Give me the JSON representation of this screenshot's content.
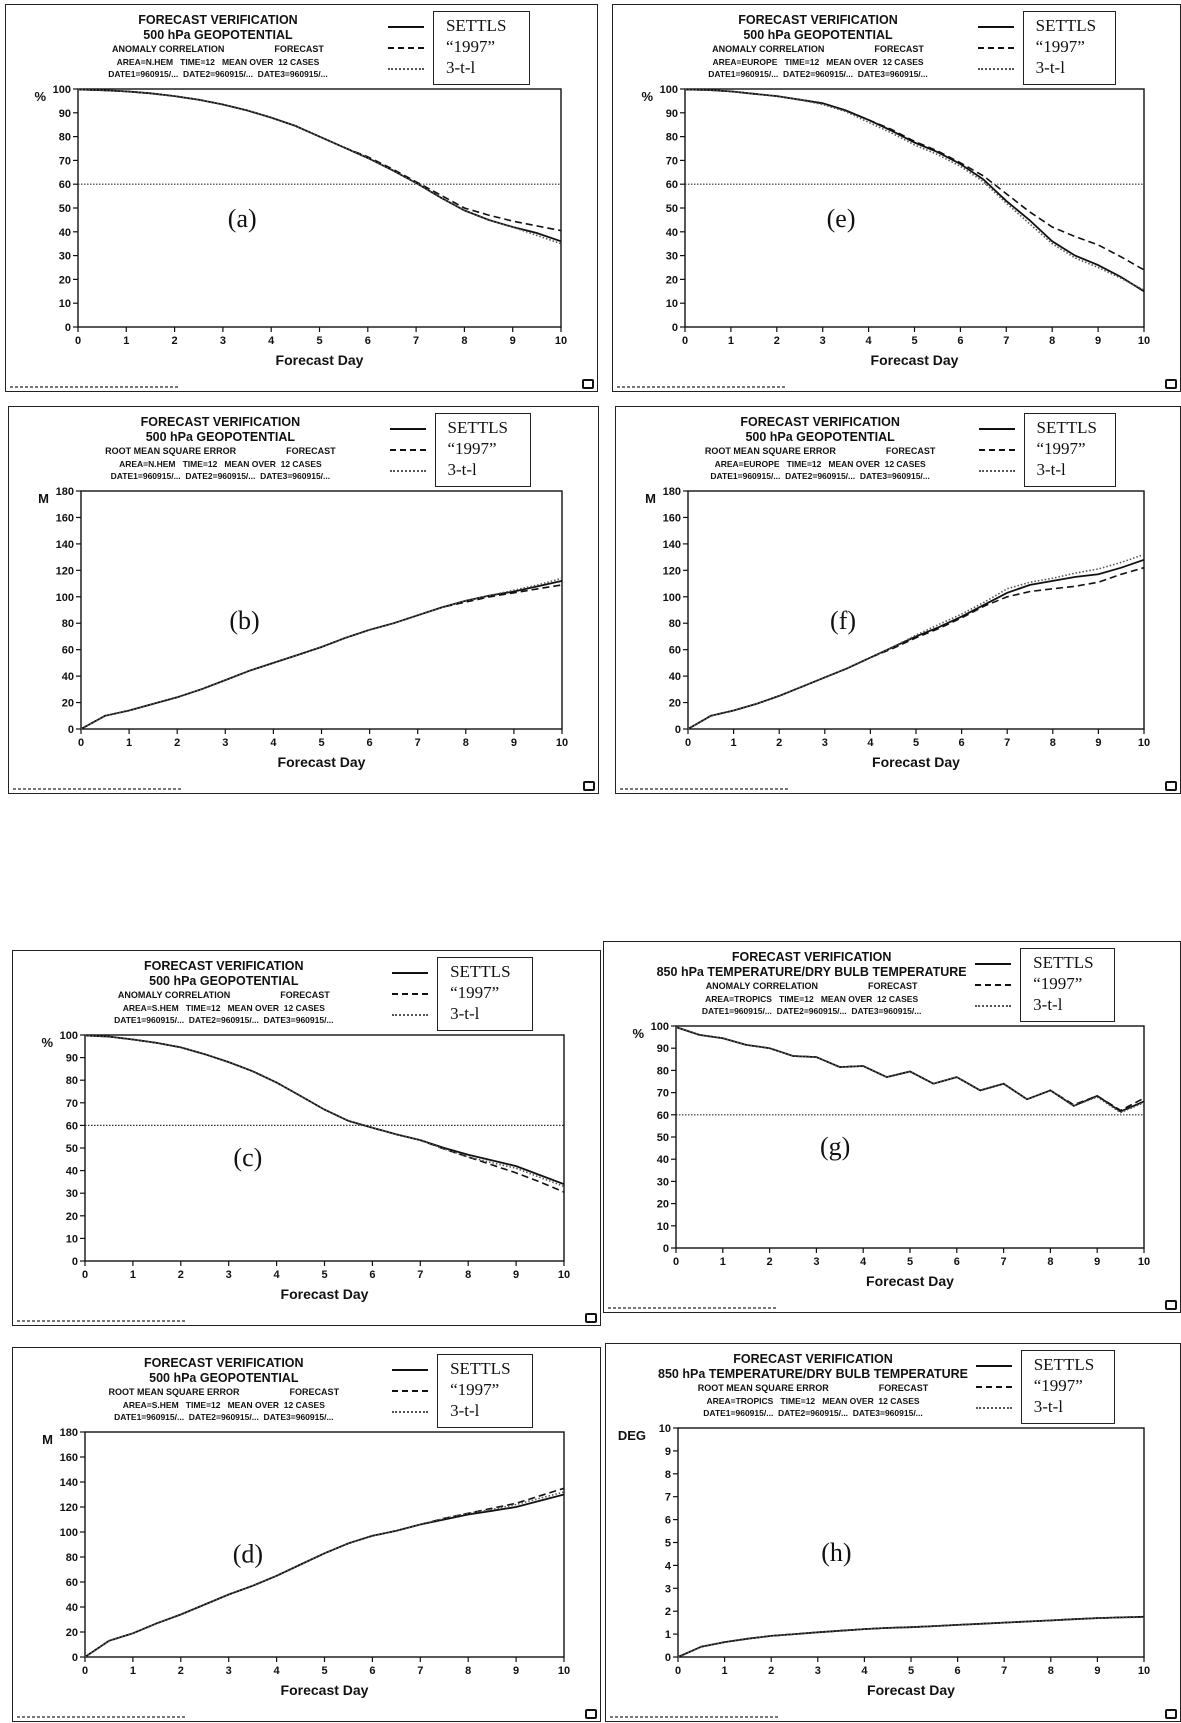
{
  "legend_labels": [
    "SETTLS",
    "“1997”",
    "3-t-l"
  ],
  "chart_data": [
    {
      "id": "a",
      "type": "line",
      "letter": "(a)",
      "title": "FORECAST VERIFICATION",
      "subtitle": "500 hPa GEOPOTENTIAL",
      "info": [
        "ANOMALY CORRELATION                    FORECAST",
        "AREA=N.HEM   TIME=12   MEAN OVER  12 CASES",
        "DATE1=960915/...  DATE2=960915/...  DATE3=960915/..."
      ],
      "ylabel": "%",
      "xlabel": "Forecast Day",
      "xlim": [
        0,
        10
      ],
      "ylim": [
        0,
        100
      ],
      "yticks": [
        0,
        10,
        20,
        30,
        40,
        50,
        60,
        70,
        80,
        90,
        100
      ],
      "xticks": [
        0,
        1,
        2,
        3,
        4,
        5,
        6,
        7,
        8,
        9,
        10
      ],
      "ref_line": 60,
      "x": [
        0,
        0.5,
        1,
        1.5,
        2,
        2.5,
        3,
        3.5,
        4,
        4.5,
        5,
        5.5,
        6,
        6.5,
        7,
        7.5,
        8,
        8.5,
        9,
        9.5,
        10
      ],
      "series": [
        {
          "name": "SETTLS",
          "values": [
            99.8,
            99.5,
            99,
            98.2,
            97,
            95.5,
            93.5,
            91,
            88,
            84.5,
            80,
            75.5,
            71,
            66,
            60.5,
            54.5,
            49,
            45,
            42,
            39.5,
            36
          ]
        },
        {
          "name": "“1997”",
          "values": [
            99.8,
            99.5,
            99,
            98.2,
            97,
            95.5,
            93.5,
            91,
            88,
            84.5,
            80,
            75.5,
            71.5,
            66.5,
            61,
            55.5,
            50,
            47,
            44.5,
            42.5,
            40.5
          ]
        },
        {
          "name": "3-t-l",
          "values": [
            99.8,
            99.5,
            99,
            98.2,
            97,
            95.5,
            93.5,
            91,
            88,
            84.5,
            80,
            75.5,
            71,
            66,
            60.5,
            54.5,
            49,
            45,
            42,
            38.5,
            35
          ]
        }
      ]
    },
    {
      "id": "b",
      "type": "line",
      "letter": "(b)",
      "title": "FORECAST VERIFICATION",
      "subtitle": "500 hPa GEOPOTENTIAL",
      "info": [
        "ROOT MEAN SQUARE ERROR                    FORECAST",
        "AREA=N.HEM   TIME=12   MEAN OVER  12 CASES",
        "DATE1=960915/...  DATE2=960915/...  DATE3=960915/..."
      ],
      "ylabel": "M",
      "xlabel": "Forecast Day",
      "xlim": [
        0,
        10
      ],
      "ylim": [
        0,
        180
      ],
      "yticks": [
        0,
        20,
        40,
        60,
        80,
        100,
        120,
        140,
        160,
        180
      ],
      "xticks": [
        0,
        1,
        2,
        3,
        4,
        5,
        6,
        7,
        8,
        9,
        10
      ],
      "ref_line": null,
      "x": [
        0,
        0.5,
        1,
        1.5,
        2,
        2.5,
        3,
        3.5,
        4,
        4.5,
        5,
        5.5,
        6,
        6.5,
        7,
        7.5,
        8,
        8.5,
        9,
        9.5,
        10
      ],
      "series": [
        {
          "name": "SETTLS",
          "values": [
            0,
            10,
            14,
            19,
            24,
            30,
            37,
            44,
            50,
            56,
            62,
            69,
            75,
            80,
            86,
            92,
            97,
            101,
            104,
            108,
            112
          ]
        },
        {
          "name": "“1997”",
          "values": [
            0,
            10,
            14,
            19,
            24,
            30,
            37,
            44,
            50,
            56,
            62,
            69,
            75,
            80,
            86,
            92,
            96,
            100,
            103,
            106,
            109
          ]
        },
        {
          "name": "3-t-l",
          "values": [
            0,
            10,
            14,
            19,
            24,
            30,
            37,
            44,
            50,
            56,
            62,
            69,
            75,
            80,
            86,
            92,
            97,
            101,
            105,
            109,
            114
          ]
        }
      ]
    },
    {
      "id": "c",
      "type": "line",
      "letter": "(c)",
      "title": "FORECAST VERIFICATION",
      "subtitle": "500 hPa GEOPOTENTIAL",
      "info": [
        "ANOMALY CORRELATION                    FORECAST",
        "AREA=S.HEM   TIME=12   MEAN OVER  12 CASES",
        "DATE1=960915/...  DATE2=960915/...  DATE3=960915/..."
      ],
      "ylabel": "%",
      "xlabel": "Forecast Day",
      "xlim": [
        0,
        10
      ],
      "ylim": [
        0,
        100
      ],
      "yticks": [
        0,
        10,
        20,
        30,
        40,
        50,
        60,
        70,
        80,
        90,
        100
      ],
      "xticks": [
        0,
        1,
        2,
        3,
        4,
        5,
        6,
        7,
        8,
        9,
        10
      ],
      "ref_line": 60,
      "x": [
        0,
        0.5,
        1,
        1.5,
        2,
        2.5,
        3,
        3.5,
        4,
        4.5,
        5,
        5.5,
        6,
        6.5,
        7,
        7.5,
        8,
        8.5,
        9,
        9.5,
        10
      ],
      "series": [
        {
          "name": "SETTLS",
          "values": [
            99.8,
            99.3,
            98,
            96.5,
            94.5,
            91.5,
            88,
            84,
            79,
            73,
            67,
            62,
            59,
            56,
            53.5,
            50,
            47,
            44.5,
            42,
            38,
            34
          ]
        },
        {
          "name": "“1997”",
          "values": [
            99.8,
            99.3,
            98,
            96.5,
            94.5,
            91.5,
            88,
            84,
            79,
            73,
            67,
            62,
            59,
            56,
            53.5,
            49.5,
            46,
            42.5,
            39,
            35,
            30.5
          ]
        },
        {
          "name": "3-t-l",
          "values": [
            99.8,
            99.3,
            98,
            96.5,
            94.5,
            91.5,
            88,
            84,
            79,
            73,
            67,
            62,
            59,
            56,
            53.5,
            49.5,
            46,
            43.5,
            41,
            37,
            33
          ]
        }
      ]
    },
    {
      "id": "d",
      "type": "line",
      "letter": "(d)",
      "title": "FORECAST VERIFICATION",
      "subtitle": "500 hPa GEOPOTENTIAL",
      "info": [
        "ROOT MEAN SQUARE ERROR                    FORECAST",
        "AREA=S.HEM   TIME=12   MEAN OVER  12 CASES",
        "DATE1=960915/...  DATE2=960915/...  DATE3=960915/..."
      ],
      "ylabel": "M",
      "xlabel": "Forecast Day",
      "xlim": [
        0,
        10
      ],
      "ylim": [
        0,
        180
      ],
      "yticks": [
        0,
        20,
        40,
        60,
        80,
        100,
        120,
        140,
        160,
        180
      ],
      "xticks": [
        0,
        1,
        2,
        3,
        4,
        5,
        6,
        7,
        8,
        9,
        10
      ],
      "ref_line": null,
      "x": [
        0,
        0.5,
        1,
        1.5,
        2,
        2.5,
        3,
        3.5,
        4,
        4.5,
        5,
        5.5,
        6,
        6.5,
        7,
        7.5,
        8,
        8.5,
        9,
        9.5,
        10
      ],
      "series": [
        {
          "name": "SETTLS",
          "values": [
            0,
            13,
            19,
            27,
            34,
            42,
            50,
            57,
            65,
            74,
            83,
            91,
            97,
            101,
            106,
            110,
            114,
            117,
            120,
            125,
            130
          ]
        },
        {
          "name": "“1997”",
          "values": [
            0,
            13,
            19,
            27,
            34,
            42,
            50,
            57,
            65,
            74,
            83,
            91,
            97,
            101,
            106,
            111,
            115,
            119,
            123,
            129,
            135
          ]
        },
        {
          "name": "3-t-l",
          "values": [
            0,
            13,
            19,
            27,
            34,
            42,
            50,
            57,
            65,
            74,
            83,
            91,
            97,
            101,
            106,
            111,
            115,
            118,
            122,
            127,
            132
          ]
        }
      ]
    },
    {
      "id": "e",
      "type": "line",
      "letter": "(e)",
      "title": "FORECAST VERIFICATION",
      "subtitle": "500 hPa GEOPOTENTIAL",
      "info": [
        "ANOMALY CORRELATION                    FORECAST",
        "AREA=EUROPE   TIME=12   MEAN OVER  12 CASES",
        "DATE1=960915/...  DATE2=960915/...  DATE3=960915/..."
      ],
      "ylabel": "%",
      "xlabel": "Forecast Day",
      "xlim": [
        0,
        10
      ],
      "ylim": [
        0,
        100
      ],
      "yticks": [
        0,
        10,
        20,
        30,
        40,
        50,
        60,
        70,
        80,
        90,
        100
      ],
      "xticks": [
        0,
        1,
        2,
        3,
        4,
        5,
        6,
        7,
        8,
        9,
        10
      ],
      "ref_line": 60,
      "x": [
        0,
        0.5,
        1,
        1.5,
        2,
        2.5,
        3,
        3.5,
        4,
        4.5,
        5,
        5.5,
        6,
        6.5,
        7,
        7.5,
        8,
        8.5,
        9,
        9.5,
        10
      ],
      "series": [
        {
          "name": "SETTLS",
          "values": [
            99.8,
            99.6,
            99,
            98,
            97,
            95.5,
            94,
            91,
            87,
            82.5,
            77.5,
            73.5,
            68.5,
            62,
            53,
            45,
            36,
            30,
            26,
            21,
            15
          ]
        },
        {
          "name": "“1997”",
          "values": [
            99.8,
            99.6,
            99,
            98,
            97,
            95.5,
            94,
            91,
            87,
            83,
            78,
            74,
            69,
            63.5,
            56,
            48.5,
            42,
            38,
            34.5,
            29.5,
            24
          ]
        },
        {
          "name": "3-t-l",
          "values": [
            99.8,
            99.6,
            99,
            98,
            97,
            95.5,
            93.5,
            90.5,
            86,
            81.5,
            76.5,
            72.5,
            67.5,
            61,
            52,
            43.5,
            35,
            29,
            25,
            20.5,
            15.5
          ]
        }
      ]
    },
    {
      "id": "f",
      "type": "line",
      "letter": "(f)",
      "title": "FORECAST VERIFICATION",
      "subtitle": "500 hPa GEOPOTENTIAL",
      "info": [
        "ROOT MEAN SQUARE ERROR                    FORECAST",
        "AREA=EUROPE   TIME=12   MEAN OVER  12 CASES",
        "DATE1=960915/...  DATE2=960915/...  DATE3=960915/..."
      ],
      "ylabel": "M",
      "xlabel": "Forecast Day",
      "xlim": [
        0,
        10
      ],
      "ylim": [
        0,
        180
      ],
      "yticks": [
        0,
        20,
        40,
        60,
        80,
        100,
        120,
        140,
        160,
        180
      ],
      "xticks": [
        0,
        1,
        2,
        3,
        4,
        5,
        6,
        7,
        8,
        9,
        10
      ],
      "ref_line": null,
      "x": [
        0,
        0.5,
        1,
        1.5,
        2,
        2.5,
        3,
        3.5,
        4,
        4.5,
        5,
        5.5,
        6,
        6.5,
        7,
        7.5,
        8,
        8.5,
        9,
        9.5,
        10
      ],
      "series": [
        {
          "name": "SETTLS",
          "values": [
            0,
            10,
            14,
            19,
            25,
            32,
            39,
            46,
            54,
            62,
            70,
            77,
            85,
            94,
            103,
            109,
            112,
            115,
            117,
            122,
            128
          ]
        },
        {
          "name": "“1997”",
          "values": [
            0,
            10,
            14,
            19,
            25,
            32,
            39,
            46,
            54,
            61,
            69,
            76,
            84,
            93,
            100,
            104,
            106,
            108,
            111,
            117,
            122
          ]
        },
        {
          "name": "3-t-l",
          "values": [
            0,
            10,
            14,
            19,
            25,
            32,
            39,
            46,
            54,
            62,
            71,
            79,
            87,
            96,
            106,
            111,
            114,
            118,
            121,
            126,
            132
          ]
        }
      ]
    },
    {
      "id": "g",
      "type": "line",
      "letter": "(g)",
      "title": "FORECAST VERIFICATION",
      "subtitle": "850 hPa TEMPERATURE/DRY BULB TEMPERATURE",
      "info": [
        "ANOMALY CORRELATION                    FORECAST",
        "AREA=TROPICS   TIME=12   MEAN OVER  12 CASES",
        "DATE1=960915/...  DATE2=960915/...  DATE3=960915/..."
      ],
      "ylabel": "%",
      "xlabel": "Forecast Day",
      "xlim": [
        0,
        10
      ],
      "ylim": [
        0,
        100
      ],
      "yticks": [
        0,
        10,
        20,
        30,
        40,
        50,
        60,
        70,
        80,
        90,
        100
      ],
      "xticks": [
        0,
        1,
        2,
        3,
        4,
        5,
        6,
        7,
        8,
        9,
        10
      ],
      "ref_line": 60,
      "x": [
        0,
        0.5,
        1,
        1.5,
        2,
        2.5,
        3,
        3.5,
        4,
        4.5,
        5,
        5.5,
        6,
        6.5,
        7,
        7.5,
        8,
        8.5,
        9,
        9.5,
        10
      ],
      "series": [
        {
          "name": "SETTLS",
          "values": [
            99.5,
            96,
            94.5,
            91.5,
            90,
            86.5,
            86,
            81.5,
            82,
            77,
            79.5,
            74,
            77,
            71,
            74,
            67,
            71,
            64,
            68.5,
            61.5,
            66
          ]
        },
        {
          "name": "“1997”",
          "values": [
            99.5,
            96,
            94.5,
            91.5,
            90,
            86.5,
            86,
            81.5,
            82,
            77,
            79.5,
            74,
            77,
            71,
            74,
            67,
            71,
            64.5,
            68.5,
            62,
            67.5
          ]
        },
        {
          "name": "3-t-l",
          "values": [
            99.5,
            96,
            94.5,
            91.5,
            90,
            86.5,
            86,
            81.5,
            82,
            77,
            79.5,
            74,
            77,
            71,
            74,
            67,
            71,
            64,
            68,
            61,
            65.5
          ]
        }
      ]
    },
    {
      "id": "h",
      "type": "line",
      "letter": "(h)",
      "title": "FORECAST VERIFICATION",
      "subtitle": "850 hPa TEMPERATURE/DRY BULB TEMPERATURE",
      "info": [
        "ROOT MEAN SQUARE ERROR                    FORECAST",
        "AREA=TROPICS   TIME=12   MEAN OVER  12 CASES",
        "DATE1=960915/...  DATE2=960915/...  DATE3=960915/..."
      ],
      "ylabel": "DEG",
      "xlabel": "Forecast Day",
      "xlim": [
        0,
        10
      ],
      "ylim": [
        0,
        10
      ],
      "yticks": [
        0,
        1,
        2,
        3,
        4,
        5,
        6,
        7,
        8,
        9,
        10
      ],
      "xticks": [
        0,
        1,
        2,
        3,
        4,
        5,
        6,
        7,
        8,
        9,
        10
      ],
      "ref_line": null,
      "x": [
        0,
        0.5,
        1,
        1.5,
        2,
        2.5,
        3,
        3.5,
        4,
        4.5,
        5,
        5.5,
        6,
        6.5,
        7,
        7.5,
        8,
        8.5,
        9,
        9.5,
        10
      ],
      "series": [
        {
          "name": "SETTLS",
          "values": [
            0,
            0.45,
            0.65,
            0.8,
            0.92,
            1.0,
            1.08,
            1.15,
            1.22,
            1.27,
            1.3,
            1.35,
            1.4,
            1.45,
            1.5,
            1.55,
            1.6,
            1.65,
            1.7,
            1.73,
            1.75
          ]
        },
        {
          "name": "“1997”",
          "values": [
            0,
            0.45,
            0.65,
            0.8,
            0.92,
            1.0,
            1.08,
            1.15,
            1.22,
            1.27,
            1.3,
            1.35,
            1.4,
            1.45,
            1.5,
            1.55,
            1.6,
            1.65,
            1.7,
            1.73,
            1.76
          ]
        },
        {
          "name": "3-t-l",
          "values": [
            0,
            0.45,
            0.65,
            0.8,
            0.92,
            1.0,
            1.08,
            1.15,
            1.22,
            1.27,
            1.3,
            1.35,
            1.4,
            1.45,
            1.5,
            1.55,
            1.6,
            1.65,
            1.7,
            1.72,
            1.74
          ]
        }
      ]
    }
  ]
}
